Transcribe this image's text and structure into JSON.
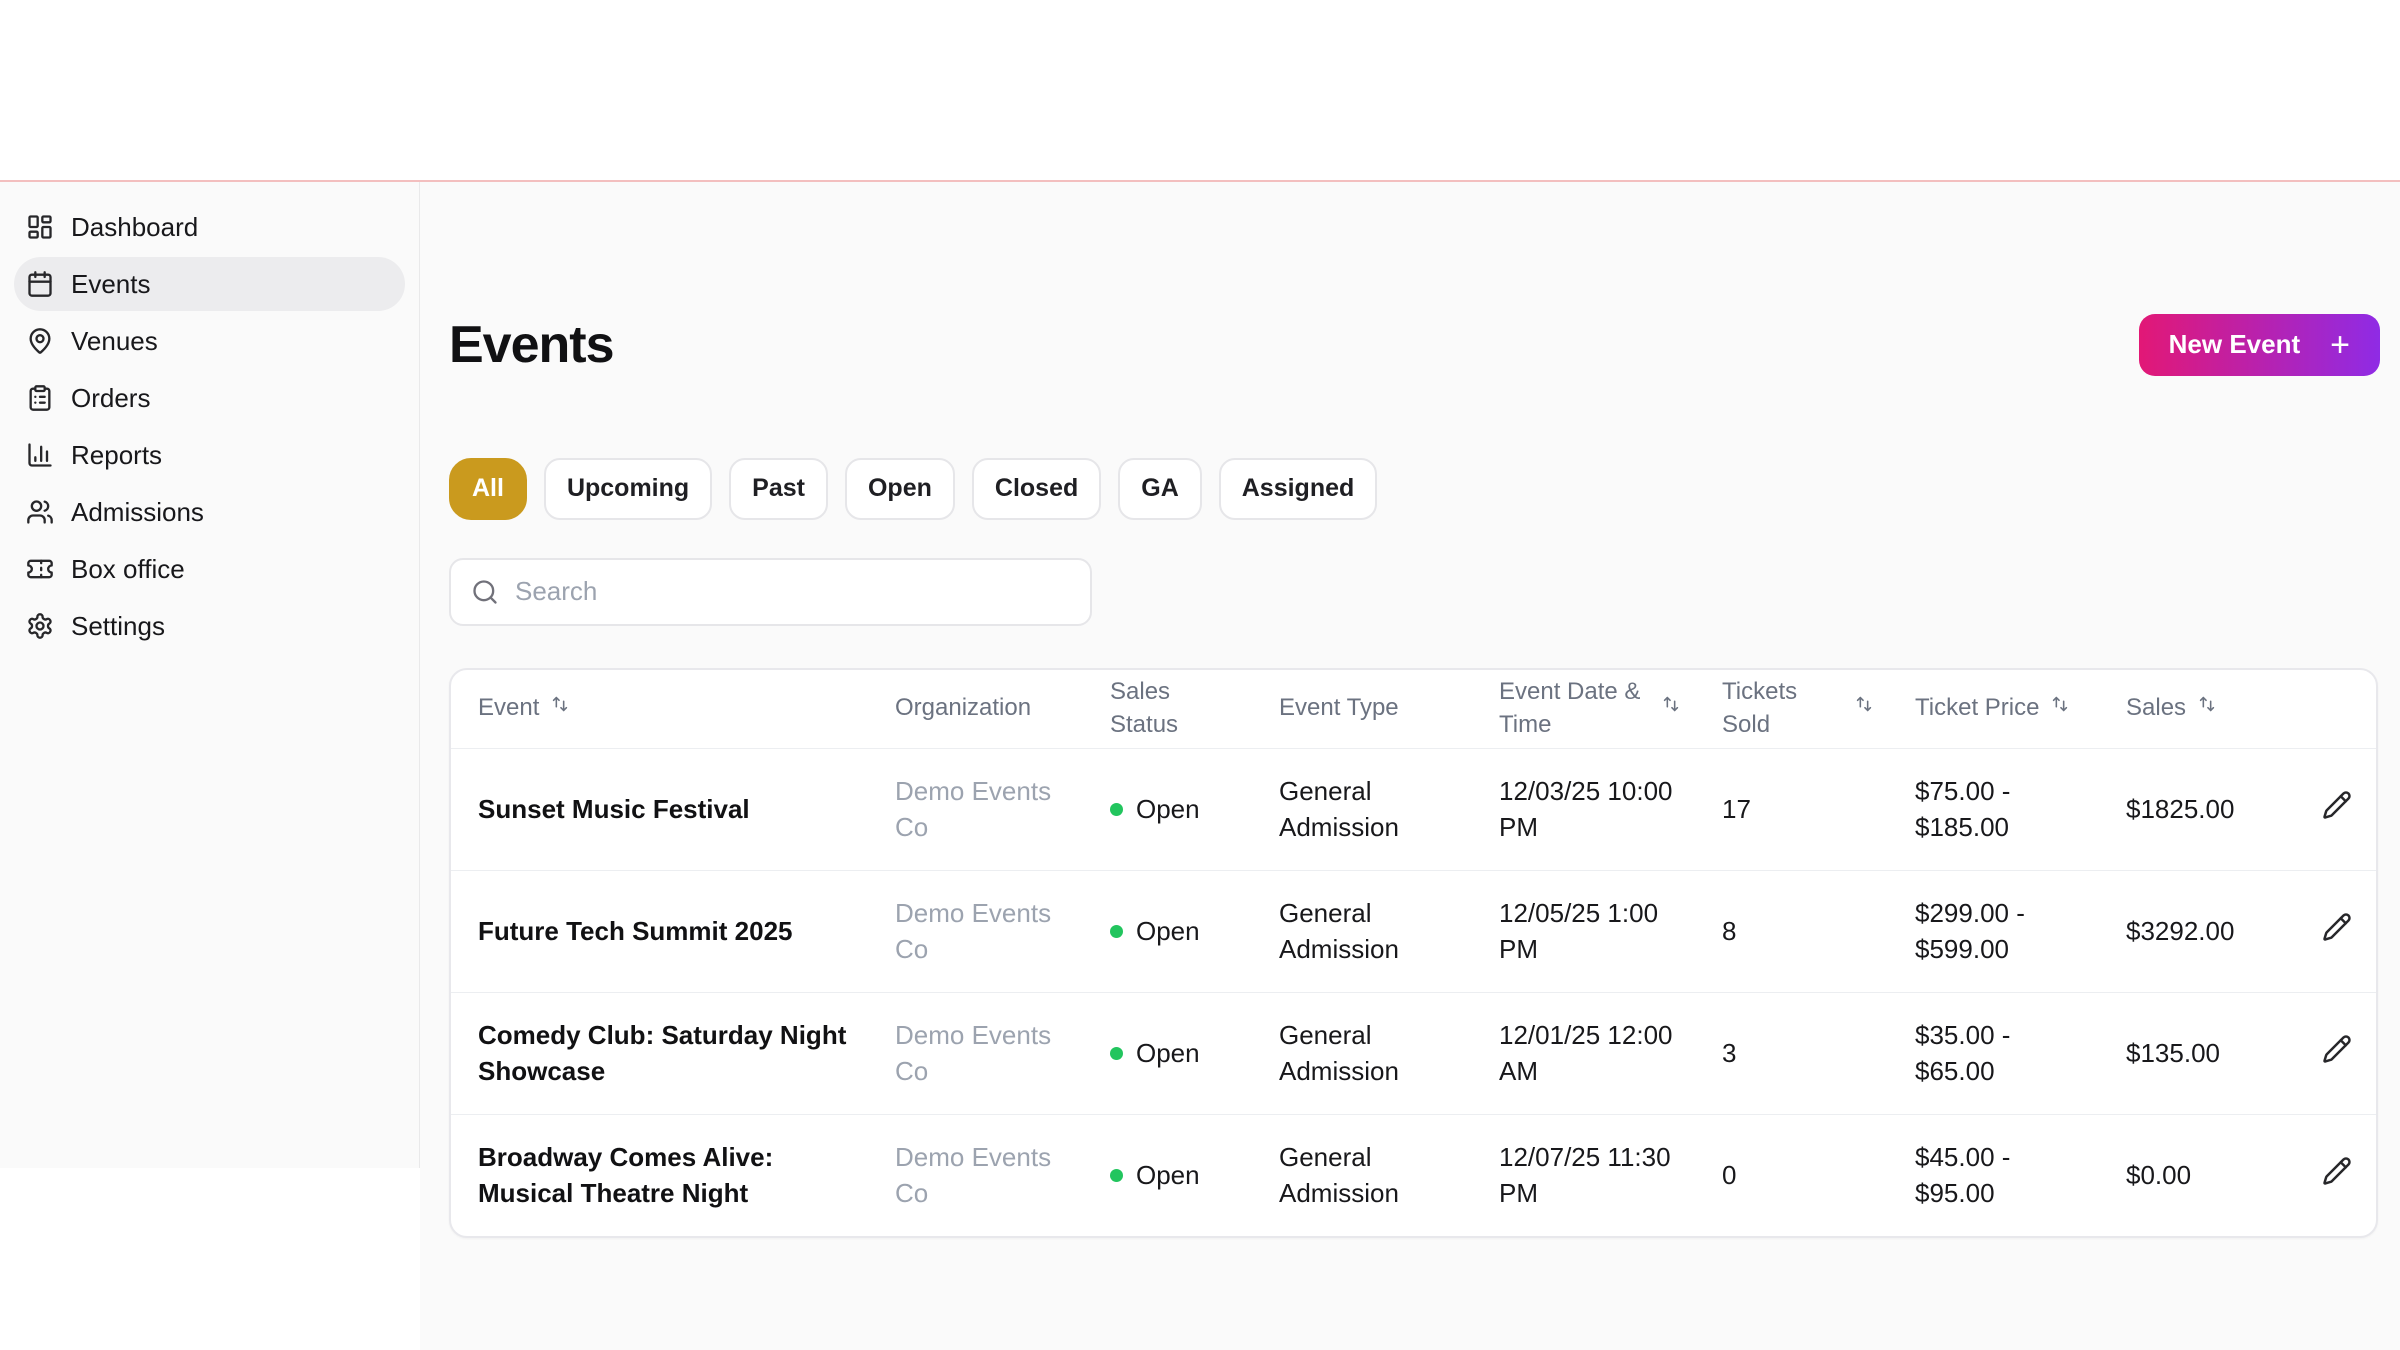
{
  "sidebar": {
    "items": [
      {
        "label": "Dashboard",
        "icon": "dashboard-icon",
        "active": false
      },
      {
        "label": "Events",
        "icon": "calendar-icon",
        "active": true
      },
      {
        "label": "Venues",
        "icon": "map-pin-icon",
        "active": false
      },
      {
        "label": "Orders",
        "icon": "clipboard-icon",
        "active": false
      },
      {
        "label": "Reports",
        "icon": "bar-chart-icon",
        "active": false
      },
      {
        "label": "Admissions",
        "icon": "users-icon",
        "active": false
      },
      {
        "label": "Box office",
        "icon": "ticket-icon",
        "active": false
      },
      {
        "label": "Settings",
        "icon": "gear-icon",
        "active": false
      }
    ]
  },
  "header": {
    "title": "Events",
    "new_event_button": {
      "label": "New Event",
      "plus": "+"
    }
  },
  "filters": [
    {
      "label": "All",
      "active": true
    },
    {
      "label": "Upcoming",
      "active": false
    },
    {
      "label": "Past",
      "active": false
    },
    {
      "label": "Open",
      "active": false
    },
    {
      "label": "Closed",
      "active": false
    },
    {
      "label": "GA",
      "active": false
    },
    {
      "label": "Assigned",
      "active": false
    }
  ],
  "search": {
    "placeholder": "Search"
  },
  "table": {
    "columns": [
      {
        "label": "Event",
        "sortable": true
      },
      {
        "label": "Organization",
        "sortable": false
      },
      {
        "label": "Sales Status",
        "sortable": false
      },
      {
        "label": "Event Type",
        "sortable": false
      },
      {
        "label": "Event Date & Time",
        "sortable": true
      },
      {
        "label": "Tickets Sold",
        "sortable": true
      },
      {
        "label": "Ticket Price",
        "sortable": true
      },
      {
        "label": "Sales",
        "sortable": true
      }
    ],
    "rows": [
      {
        "event": "Sunset Music Festival",
        "organization": "Demo Events Co",
        "sales_status": "Open",
        "event_type": "General Admission",
        "date_time": "12/03/25 10:00 PM",
        "tickets_sold": "17",
        "ticket_price": "$75.00 - $185.00",
        "sales": "$1825.00"
      },
      {
        "event": "Future Tech Summit 2025",
        "organization": "Demo Events Co",
        "sales_status": "Open",
        "event_type": "General Admission",
        "date_time": "12/05/25 1:00 PM",
        "tickets_sold": "8",
        "ticket_price": "$299.00 - $599.00",
        "sales": "$3292.00"
      },
      {
        "event": "Comedy Club: Saturday Night Showcase",
        "organization": "Demo Events Co",
        "sales_status": "Open",
        "event_type": "General Admission",
        "date_time": "12/01/25 12:00 AM",
        "tickets_sold": "3",
        "ticket_price": "$35.00 - $65.00",
        "sales": "$135.00"
      },
      {
        "event": "Broadway Comes Alive: Musical Theatre Night",
        "organization": "Demo Events Co",
        "sales_status": "Open",
        "event_type": "General Admission",
        "date_time": "12/07/25 11:30 PM",
        "tickets_sold": "0",
        "ticket_price": "$45.00 - $95.00",
        "sales": "$0.00"
      }
    ]
  },
  "colors": {
    "filter_active_gold": "#ca9a1e",
    "new_event_gradient_from": "#e21876",
    "new_event_gradient_to": "#8f2be5",
    "status_open_green": "#22c55e",
    "top_divider_pink": "#f3bfbf"
  }
}
